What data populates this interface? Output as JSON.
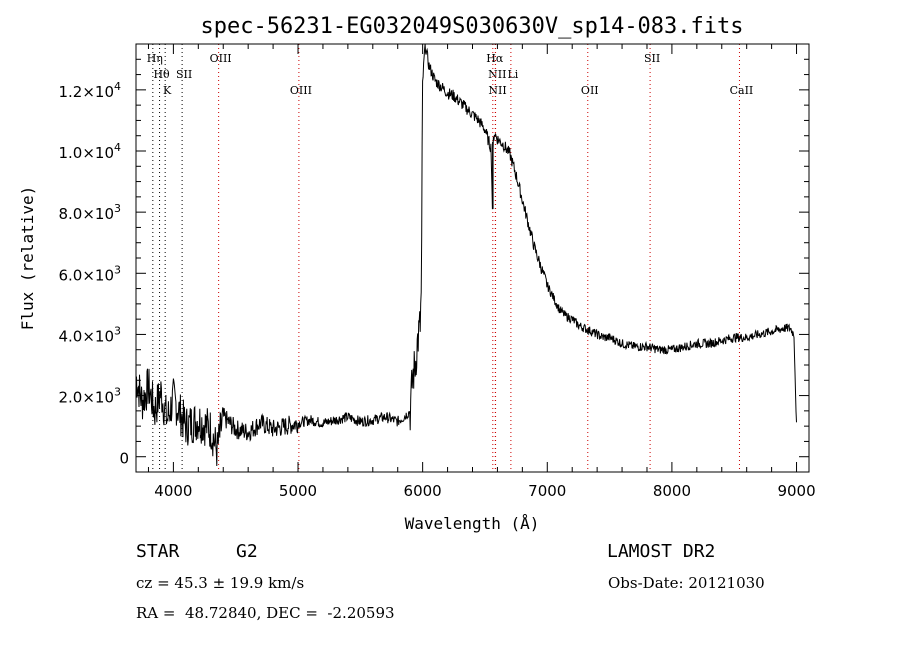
{
  "chart_data": {
    "type": "line",
    "title": "spec-56231-EG032049S030630V_sp14-083.fits",
    "xlabel": "Wavelength (Å)",
    "ylabel": "Flux (relative)",
    "xlim": [
      3700,
      9100
    ],
    "ylim": [
      -500,
      13500
    ],
    "x_ticks": [
      {
        "value": 4000,
        "label": "4000"
      },
      {
        "value": 5000,
        "label": "5000"
      },
      {
        "value": 6000,
        "label": "6000"
      },
      {
        "value": 7000,
        "label": "7000"
      },
      {
        "value": 8000,
        "label": "8000"
      },
      {
        "value": 9000,
        "label": "9000"
      }
    ],
    "y_ticks": [
      {
        "value": 0,
        "mant": "0",
        "exp": ""
      },
      {
        "value": 2000,
        "mant": "2.0×10",
        "exp": "3"
      },
      {
        "value": 4000,
        "mant": "4.0×10",
        "exp": "3"
      },
      {
        "value": 6000,
        "mant": "6.0×10",
        "exp": "3"
      },
      {
        "value": 8000,
        "mant": "8.0×10",
        "exp": "3"
      },
      {
        "value": 10000,
        "mant": "1.0×10",
        "exp": "4"
      },
      {
        "value": 12000,
        "mant": "1.2×10",
        "exp": "4"
      }
    ],
    "spectral_lines": [
      {
        "wavelength": 3835,
        "label": "Hη",
        "row": 0,
        "color": "#000000"
      },
      {
        "wavelength": 3889,
        "label": "Hθ",
        "row": 1,
        "color": "#000000"
      },
      {
        "wavelength": 3934,
        "label": "K",
        "row": 2,
        "color": "#000000"
      },
      {
        "wavelength": 4070,
        "label": "SII",
        "row": 1,
        "color": "#000000"
      },
      {
        "wavelength": 4363,
        "label": "OIII",
        "row": 0,
        "color": "#cc0000"
      },
      {
        "wavelength": 5007,
        "label": "OIII",
        "row": 2,
        "color": "#cc0000"
      },
      {
        "wavelength": 6563,
        "label": "Hα",
        "row": 0,
        "color": "#cc0000"
      },
      {
        "wavelength": 6583,
        "label": "NII",
        "row": 1,
        "color": "#cc0000"
      },
      {
        "wavelength": 6585,
        "label": "NII",
        "row": 2,
        "color": "#cc0000"
      },
      {
        "wavelength": 6708,
        "label": "Li",
        "row": 1,
        "color": "#cc0000"
      },
      {
        "wavelength": 7325,
        "label": "OII",
        "row": 2,
        "color": "#cc0000"
      },
      {
        "wavelength": 7825,
        "label": "SII",
        "row": 0,
        "color": "#cc0000"
      },
      {
        "wavelength": 8542,
        "label": "CaII",
        "row": 2,
        "color": "#cc0000"
      }
    ],
    "series": [
      {
        "color": "#000000",
        "x": [
          3700,
          3750,
          3800,
          3850,
          3900,
          3950,
          4000,
          4100,
          4200,
          4300,
          4350,
          4400,
          4500,
          4600,
          4700,
          4800,
          4900,
          5000,
          5100,
          5200,
          5300,
          5400,
          5500,
          5600,
          5700,
          5800,
          5850,
          5900,
          5920,
          5940,
          5960,
          5980,
          5990,
          6000,
          6020,
          6050,
          6100,
          6150,
          6200,
          6250,
          6300,
          6350,
          6400,
          6450,
          6500,
          6530,
          6550,
          6560,
          6563,
          6566,
          6575,
          6600,
          6650,
          6700,
          6750,
          6800,
          6850,
          6900,
          6950,
          7000,
          7050,
          7100,
          7150,
          7200,
          7250,
          7300,
          7350,
          7400,
          7450,
          7500,
          7600,
          7700,
          7800,
          7900,
          8000,
          8100,
          8200,
          8300,
          8400,
          8500,
          8600,
          8700,
          8800,
          8900,
          8950,
          8980,
          9000
        ],
        "y": [
          2600,
          1800,
          2300,
          1500,
          2100,
          1200,
          1900,
          1000,
          1200,
          900,
          200,
          1300,
          900,
          800,
          1100,
          900,
          1000,
          1100,
          1200,
          1100,
          1200,
          1300,
          1150,
          1200,
          1300,
          1150,
          1300,
          1500,
          2600,
          3000,
          3800,
          4300,
          5500,
          12200,
          13500,
          12800,
          12300,
          12100,
          11900,
          11800,
          11600,
          11400,
          11200,
          11000,
          10700,
          10300,
          10100,
          8100,
          9800,
          10300,
          10600,
          10400,
          10200,
          9900,
          9200,
          8400,
          7600,
          6800,
          6200,
          5600,
          5200,
          4800,
          4600,
          4500,
          4300,
          4200,
          4100,
          4000,
          3900,
          3900,
          3700,
          3600,
          3600,
          3500,
          3500,
          3600,
          3700,
          3700,
          3800,
          3900,
          3900,
          4000,
          4100,
          4200,
          4200,
          4000,
          1000
        ]
      }
    ]
  },
  "info": {
    "object_type": "STAR",
    "subclass": "G2",
    "survey": "LAMOST DR2",
    "redshift": "cz = 45.3 ± 19.9 km/s",
    "obs_date": "Obs-Date: 20121030",
    "coords": "RA =  48.72840, DEC =  -2.20593"
  }
}
